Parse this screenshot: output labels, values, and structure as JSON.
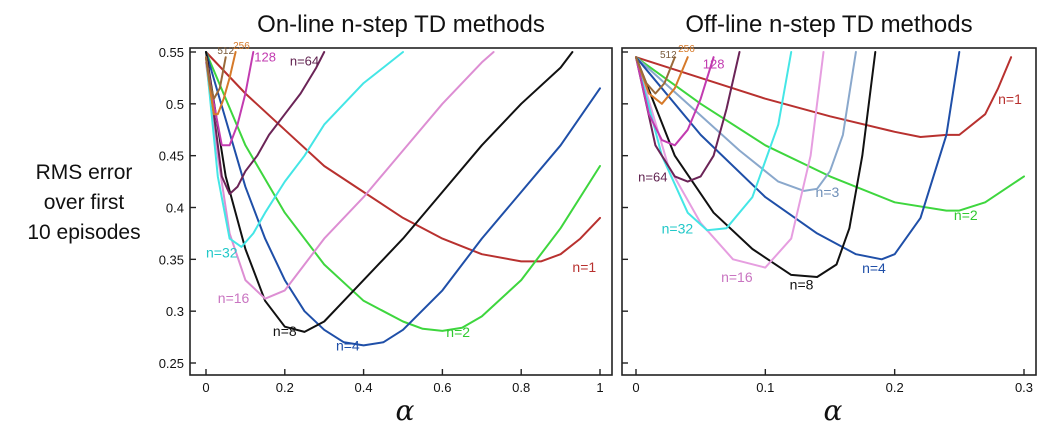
{
  "ylabel_lines": [
    "RMS error",
    "over first",
    "10 episodes"
  ],
  "chart_data": [
    {
      "type": "line",
      "title": "On-line n-step TD methods",
      "xlabel": "α",
      "ylabel": "RMS error over first 10 episodes",
      "xlim": [
        0,
        1
      ],
      "ylim": [
        0.25,
        0.55
      ],
      "xticks": [
        0,
        0.2,
        0.4,
        0.6,
        0.8,
        1
      ],
      "xtick_labels": [
        "0",
        "0.2",
        "0.4",
        "0.6",
        "0.8",
        "1"
      ],
      "yticks": [
        0.25,
        0.3,
        0.35,
        0.4,
        0.45,
        0.5,
        0.55
      ],
      "ytick_labels": [
        "0.25",
        "0.3",
        "0.35",
        "0.4",
        "0.45",
        "0.5",
        "0.55"
      ],
      "grid": false,
      "series": [
        {
          "name": "n=1",
          "color": "#b8312f",
          "label": "n=1",
          "x": [
            0,
            0.1,
            0.2,
            0.3,
            0.4,
            0.5,
            0.6,
            0.7,
            0.8,
            0.85,
            0.9,
            0.95,
            1.0
          ],
          "y": [
            0.55,
            0.51,
            0.475,
            0.44,
            0.415,
            0.39,
            0.37,
            0.355,
            0.348,
            0.348,
            0.355,
            0.37,
            0.39
          ]
        },
        {
          "name": "n=2",
          "color": "#3ed63e",
          "label": "n=2",
          "x": [
            0,
            0.1,
            0.2,
            0.3,
            0.4,
            0.5,
            0.55,
            0.6,
            0.65,
            0.7,
            0.8,
            0.9,
            1.0
          ],
          "y": [
            0.55,
            0.46,
            0.395,
            0.345,
            0.31,
            0.29,
            0.283,
            0.281,
            0.284,
            0.295,
            0.33,
            0.38,
            0.44
          ]
        },
        {
          "name": "n=4",
          "color": "#1f4fa8",
          "label": "n=4",
          "x": [
            0,
            0.05,
            0.1,
            0.15,
            0.2,
            0.25,
            0.3,
            0.35,
            0.4,
            0.45,
            0.5,
            0.6,
            0.7,
            0.8,
            0.9,
            1.0
          ],
          "y": [
            0.55,
            0.485,
            0.42,
            0.37,
            0.33,
            0.3,
            0.282,
            0.27,
            0.267,
            0.27,
            0.282,
            0.32,
            0.37,
            0.415,
            0.46,
            0.515
          ]
        },
        {
          "name": "n=8",
          "color": "#111111",
          "label": "n=8",
          "x": [
            0,
            0.05,
            0.1,
            0.15,
            0.2,
            0.25,
            0.3,
            0.35,
            0.4,
            0.5,
            0.6,
            0.7,
            0.8,
            0.9,
            0.93
          ],
          "y": [
            0.55,
            0.43,
            0.36,
            0.31,
            0.285,
            0.28,
            0.29,
            0.31,
            0.33,
            0.37,
            0.415,
            0.46,
            0.5,
            0.535,
            0.55
          ]
        },
        {
          "name": "n=16",
          "color": "#dd8ed3",
          "label": "n=16",
          "x": [
            0,
            0.03,
            0.06,
            0.1,
            0.15,
            0.2,
            0.25,
            0.3,
            0.4,
            0.5,
            0.6,
            0.7,
            0.73
          ],
          "y": [
            0.54,
            0.45,
            0.375,
            0.33,
            0.312,
            0.32,
            0.345,
            0.37,
            0.41,
            0.455,
            0.5,
            0.54,
            0.55
          ]
        },
        {
          "name": "n=32",
          "color": "#44e6e6",
          "label": "n=32",
          "x": [
            0,
            0.03,
            0.06,
            0.09,
            0.12,
            0.15,
            0.2,
            0.25,
            0.3,
            0.35,
            0.4,
            0.45,
            0.5
          ],
          "y": [
            0.545,
            0.43,
            0.37,
            0.362,
            0.375,
            0.395,
            0.425,
            0.45,
            0.48,
            0.5,
            0.52,
            0.535,
            0.55
          ]
        },
        {
          "name": "n=64",
          "color": "#6b2457",
          "label": "n=64",
          "x": [
            0,
            0.02,
            0.04,
            0.06,
            0.08,
            0.1,
            0.13,
            0.16,
            0.2,
            0.24,
            0.28,
            0.3
          ],
          "y": [
            0.545,
            0.49,
            0.43,
            0.413,
            0.42,
            0.435,
            0.45,
            0.47,
            0.49,
            0.51,
            0.535,
            0.55
          ]
        },
        {
          "name": "n=128",
          "color": "#c23bb0",
          "label": "128",
          "x": [
            0,
            0.02,
            0.04,
            0.06,
            0.08,
            0.1,
            0.12
          ],
          "y": [
            0.545,
            0.5,
            0.46,
            0.46,
            0.48,
            0.51,
            0.55
          ]
        },
        {
          "name": "n=256",
          "color": "#d67a2a",
          "label": "256",
          "x": [
            0,
            0.01,
            0.02,
            0.03,
            0.045,
            0.06,
            0.075
          ],
          "y": [
            0.545,
            0.515,
            0.49,
            0.49,
            0.505,
            0.525,
            0.55
          ]
        },
        {
          "name": "n=512",
          "color": "#9a6a3a",
          "label": "512",
          "x": [
            0,
            0.01,
            0.02,
            0.035,
            0.05
          ],
          "y": [
            0.545,
            0.52,
            0.505,
            0.515,
            0.545
          ]
        }
      ]
    },
    {
      "type": "line",
      "title": "Off-line n-step TD methods",
      "xlabel": "α",
      "ylabel": "",
      "xlim": [
        0,
        0.3
      ],
      "ylim": [
        0.25,
        0.55
      ],
      "xticks": [
        0,
        0.1,
        0.2,
        0.3
      ],
      "xtick_labels": [
        "0",
        "0.1",
        "0.2",
        "0.3"
      ],
      "grid": false,
      "series": [
        {
          "name": "n=1",
          "color": "#b8312f",
          "label": "n=1",
          "x": [
            0,
            0.05,
            0.1,
            0.15,
            0.2,
            0.22,
            0.24,
            0.25,
            0.27,
            0.28,
            0.29
          ],
          "y": [
            0.545,
            0.525,
            0.505,
            0.488,
            0.473,
            0.468,
            0.47,
            0.47,
            0.49,
            0.515,
            0.545
          ]
        },
        {
          "name": "n=2",
          "color": "#3ed63e",
          "label": "n=2",
          "x": [
            0,
            0.05,
            0.1,
            0.15,
            0.2,
            0.24,
            0.25,
            0.27,
            0.3
          ],
          "y": [
            0.545,
            0.5,
            0.46,
            0.43,
            0.405,
            0.397,
            0.397,
            0.405,
            0.43
          ]
        },
        {
          "name": "n=3",
          "color": "#8aa8cc",
          "label": "n=3",
          "x": [
            0,
            0.04,
            0.08,
            0.11,
            0.13,
            0.14,
            0.15,
            0.16,
            0.17
          ],
          "y": [
            0.545,
            0.5,
            0.455,
            0.425,
            0.416,
            0.418,
            0.435,
            0.47,
            0.55
          ]
        },
        {
          "name": "n=4",
          "color": "#1f4fa8",
          "label": "n=4",
          "x": [
            0,
            0.05,
            0.1,
            0.14,
            0.17,
            0.19,
            0.2,
            0.22,
            0.24,
            0.25
          ],
          "y": [
            0.545,
            0.47,
            0.41,
            0.375,
            0.355,
            0.35,
            0.355,
            0.39,
            0.47,
            0.55
          ]
        },
        {
          "name": "n=8",
          "color": "#111111",
          "label": "n=8",
          "x": [
            0,
            0.03,
            0.06,
            0.09,
            0.12,
            0.14,
            0.155,
            0.165,
            0.175,
            0.185
          ],
          "y": [
            0.545,
            0.45,
            0.395,
            0.36,
            0.335,
            0.333,
            0.345,
            0.38,
            0.45,
            0.55
          ]
        },
        {
          "name": "n=16",
          "color": "#e69ee0",
          "label": "n=16",
          "x": [
            0,
            0.025,
            0.05,
            0.075,
            0.1,
            0.12,
            0.135,
            0.145
          ],
          "y": [
            0.545,
            0.44,
            0.385,
            0.35,
            0.342,
            0.37,
            0.45,
            0.55
          ]
        },
        {
          "name": "n=32",
          "color": "#44e6e6",
          "label": "n=32",
          "x": [
            0,
            0.02,
            0.04,
            0.055,
            0.07,
            0.09,
            0.11,
            0.12
          ],
          "y": [
            0.545,
            0.45,
            0.395,
            0.378,
            0.38,
            0.41,
            0.48,
            0.55
          ]
        },
        {
          "name": "n=64",
          "color": "#6b2457",
          "label": "n=64",
          "x": [
            0,
            0.015,
            0.03,
            0.04,
            0.05,
            0.06,
            0.07,
            0.08
          ],
          "y": [
            0.545,
            0.46,
            0.43,
            0.425,
            0.43,
            0.45,
            0.495,
            0.55
          ]
        },
        {
          "name": "n=128",
          "color": "#c23bb0",
          "label": "128",
          "x": [
            0,
            0.01,
            0.02,
            0.03,
            0.04,
            0.05,
            0.06
          ],
          "y": [
            0.545,
            0.49,
            0.465,
            0.46,
            0.475,
            0.505,
            0.545
          ]
        },
        {
          "name": "n=256",
          "color": "#d67a2a",
          "label": "256",
          "x": [
            0,
            0.01,
            0.02,
            0.03,
            0.04
          ],
          "y": [
            0.545,
            0.51,
            0.5,
            0.515,
            0.545
          ]
        },
        {
          "name": "n=512",
          "color": "#9a6a3a",
          "label": "512",
          "x": [
            0,
            0.008,
            0.015,
            0.022,
            0.03
          ],
          "y": [
            0.545,
            0.52,
            0.51,
            0.52,
            0.545
          ]
        }
      ]
    }
  ]
}
